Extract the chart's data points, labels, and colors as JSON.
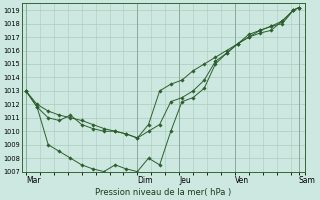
{
  "xlabel": "Pression niveau de la mer( hPa )",
  "bg_color": "#cce8e0",
  "grid_color": "#aaccbb",
  "line_color": "#2d5e2d",
  "marker_color": "#2d5e2d",
  "ylim": [
    1007,
    1019.5
  ],
  "yticks": [
    1007,
    1008,
    1009,
    1010,
    1011,
    1012,
    1013,
    1014,
    1015,
    1016,
    1017,
    1018,
    1019
  ],
  "xtick_labels": [
    "Mar",
    "Dim",
    "Jeu",
    "Ven",
    "Sam"
  ],
  "xtick_positions": [
    0.0,
    4.0,
    5.5,
    7.5,
    9.8
  ],
  "series1_x": [
    0.0,
    0.4,
    0.8,
    1.2,
    1.6,
    2.0,
    2.4,
    2.8,
    3.2,
    3.6,
    4.0,
    4.4,
    4.8,
    5.2,
    5.6,
    6.0,
    6.4,
    6.8,
    7.2,
    7.6,
    8.0,
    8.4,
    8.8,
    9.2,
    9.6,
    9.8
  ],
  "series1_y": [
    1013.0,
    1011.8,
    1011.0,
    1010.8,
    1011.2,
    1010.5,
    1010.2,
    1010.0,
    1010.0,
    1009.8,
    1009.5,
    1010.0,
    1010.5,
    1012.2,
    1012.5,
    1013.0,
    1013.8,
    1015.2,
    1015.8,
    1016.5,
    1017.0,
    1017.3,
    1017.5,
    1018.2,
    1019.0,
    1019.2
  ],
  "series2_x": [
    0.0,
    0.4,
    0.8,
    1.2,
    1.6,
    2.0,
    2.4,
    2.8,
    3.2,
    3.6,
    4.0,
    4.4,
    4.8,
    5.2,
    5.6,
    6.0,
    6.4,
    6.8,
    7.2,
    7.6,
    8.0,
    8.4,
    8.8,
    9.2,
    9.6,
    9.8
  ],
  "series2_y": [
    1013.0,
    1011.8,
    1009.0,
    1008.5,
    1008.0,
    1007.5,
    1007.2,
    1007.0,
    1007.5,
    1007.2,
    1007.0,
    1008.0,
    1007.5,
    1010.0,
    1012.2,
    1012.5,
    1013.2,
    1015.0,
    1015.8,
    1016.5,
    1017.2,
    1017.5,
    1017.8,
    1018.2,
    1019.0,
    1019.2
  ],
  "series3_x": [
    0.0,
    0.4,
    0.8,
    1.2,
    1.6,
    2.0,
    2.4,
    2.8,
    3.2,
    3.6,
    4.0,
    4.4,
    4.8,
    5.2,
    5.6,
    6.0,
    6.4,
    6.8,
    7.2,
    7.6,
    8.0,
    8.4,
    8.8,
    9.2,
    9.6,
    9.8
  ],
  "series3_y": [
    1013.0,
    1012.0,
    1011.5,
    1011.2,
    1011.0,
    1010.8,
    1010.5,
    1010.2,
    1010.0,
    1009.8,
    1009.5,
    1010.5,
    1013.0,
    1013.5,
    1013.8,
    1014.5,
    1015.0,
    1015.5,
    1016.0,
    1016.5,
    1017.0,
    1017.5,
    1017.8,
    1018.0,
    1019.0,
    1019.2
  ]
}
